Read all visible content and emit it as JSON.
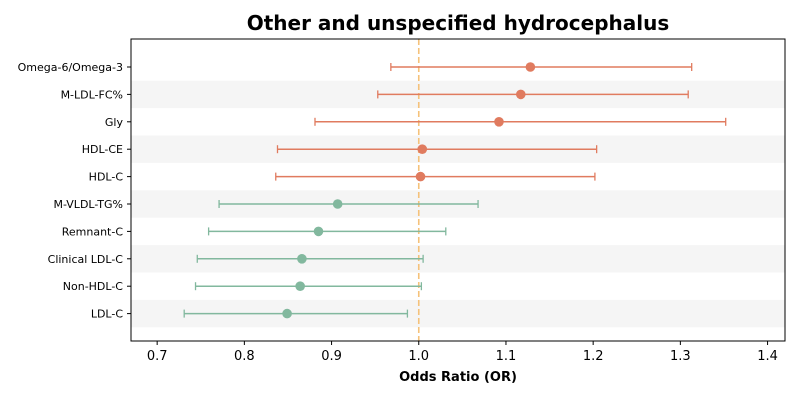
{
  "chart_data": {
    "type": "forest",
    "title": "Other and unspecified hydrocephalus",
    "xlabel": "Odds Ratio (OR)",
    "ylabel": "",
    "xlim": [
      0.67,
      1.42
    ],
    "xticks": [
      "0.7",
      "0.8",
      "0.9",
      "1.0",
      "1.1",
      "1.2",
      "1.3",
      "1.4"
    ],
    "reference_line": 1.0,
    "grid": false,
    "band_color": "#f5f5f5",
    "reference_color": "#f5c27a",
    "colors": {
      "risk": "#e07b5f",
      "protective": "#82b89e"
    },
    "series": [
      {
        "label": "Omega-6/Omega-3",
        "or": 1.128,
        "lower": 0.968,
        "upper": 1.313,
        "group": "risk"
      },
      {
        "label": "M-LDL-FC%",
        "or": 1.117,
        "lower": 0.953,
        "upper": 1.309,
        "group": "risk"
      },
      {
        "label": "Gly",
        "or": 1.092,
        "lower": 0.881,
        "upper": 1.352,
        "group": "risk"
      },
      {
        "label": "HDL-CE",
        "or": 1.004,
        "lower": 0.838,
        "upper": 1.204,
        "group": "risk"
      },
      {
        "label": "HDL-C",
        "or": 1.002,
        "lower": 0.836,
        "upper": 1.202,
        "group": "risk"
      },
      {
        "label": "M-VLDL-TG%",
        "or": 0.907,
        "lower": 0.771,
        "upper": 1.068,
        "group": "protective"
      },
      {
        "label": "Remnant-C",
        "or": 0.885,
        "lower": 0.759,
        "upper": 1.031,
        "group": "protective"
      },
      {
        "label": "Clinical LDL-C",
        "or": 0.866,
        "lower": 0.746,
        "upper": 1.005,
        "group": "protective"
      },
      {
        "label": "Non-HDL-C",
        "or": 0.864,
        "lower": 0.744,
        "upper": 1.003,
        "group": "protective"
      },
      {
        "label": "LDL-C",
        "or": 0.849,
        "lower": 0.731,
        "upper": 0.987,
        "group": "protective"
      }
    ]
  }
}
